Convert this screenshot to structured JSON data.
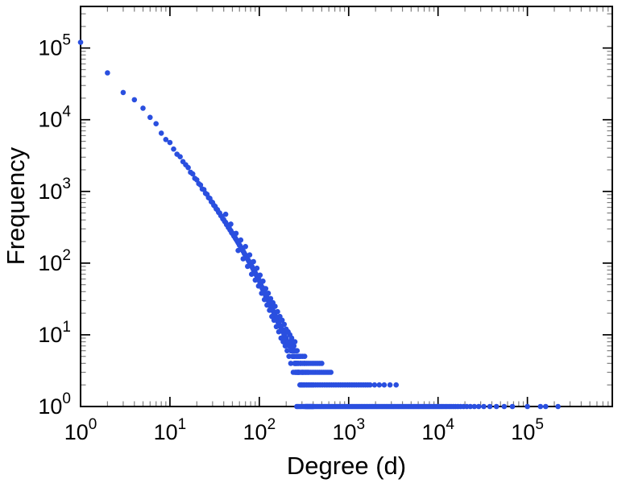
{
  "page": {
    "background": "#ffffff"
  },
  "chart_data": {
    "type": "scatter",
    "title": "",
    "xlabel": "Degree (d)",
    "ylabel": "Frequency",
    "x_scale": "log",
    "y_scale": "log",
    "xlim_log10": [
      0,
      5.95
    ],
    "ylim_log10": [
      0,
      5.58
    ],
    "x_tick_exponents": [
      0,
      1,
      2,
      3,
      4,
      5
    ],
    "y_tick_exponents": [
      0,
      1,
      2,
      3,
      4,
      5
    ],
    "tick_label_base": "10",
    "legend": "none",
    "grid": "off",
    "frame_color": "#000000",
    "minor_tick_color": "#7f7f7f",
    "marker": {
      "shape": "circle",
      "color": "#2a4fdf",
      "radius": 3.3
    },
    "points": [
      [
        1,
        120000
      ],
      [
        2,
        45000
      ],
      [
        3,
        24000
      ],
      [
        4,
        19000
      ],
      [
        5,
        14500
      ],
      [
        6,
        10800
      ],
      [
        7,
        8800
      ],
      [
        8,
        6500
      ],
      [
        9,
        5300
      ],
      [
        10,
        4800
      ],
      [
        11,
        3900
      ],
      [
        12,
        3300
      ],
      [
        13,
        3050
      ],
      [
        14,
        2600
      ],
      [
        15,
        2350
      ],
      [
        16,
        2150
      ],
      [
        17,
        1850
      ],
      [
        18,
        1750
      ],
      [
        19,
        1520
      ],
      [
        20,
        1450
      ],
      [
        21,
        1280
      ],
      [
        22,
        1230
      ],
      [
        23,
        1080
      ],
      [
        24,
        1060
      ],
      [
        25,
        940
      ],
      [
        26,
        910
      ],
      [
        27,
        820
      ],
      [
        28,
        800
      ],
      [
        29,
        720
      ],
      [
        30,
        700
      ],
      [
        31,
        640
      ],
      [
        32,
        620
      ],
      [
        33,
        570
      ],
      [
        34,
        555
      ],
      [
        35,
        510
      ],
      [
        36,
        500
      ],
      [
        37,
        460
      ],
      [
        38,
        450
      ],
      [
        39,
        415
      ],
      [
        40,
        405
      ],
      [
        41,
        380
      ],
      [
        42,
        370
      ],
      [
        43,
        345
      ],
      [
        44,
        340
      ],
      [
        45,
        315
      ],
      [
        46,
        310
      ],
      [
        47,
        290
      ],
      [
        48,
        285
      ],
      [
        49,
        265
      ],
      [
        50,
        262
      ],
      [
        51,
        250
      ],
      [
        52,
        238
      ],
      [
        53,
        232
      ],
      [
        54,
        222
      ],
      [
        55,
        215
      ],
      [
        56,
        208
      ],
      [
        57,
        200
      ],
      [
        58,
        192
      ],
      [
        59,
        187
      ],
      [
        60,
        178
      ],
      [
        61,
        174
      ],
      [
        62,
        168
      ],
      [
        63,
        162
      ],
      [
        64,
        156
      ],
      [
        65,
        152
      ],
      [
        66,
        146
      ],
      [
        67,
        142
      ],
      [
        68,
        136
      ],
      [
        69,
        133
      ],
      [
        70,
        128
      ],
      [
        71,
        125
      ],
      [
        72,
        120
      ],
      [
        73,
        118
      ],
      [
        74,
        114
      ],
      [
        75,
        111
      ],
      [
        76,
        107
      ],
      [
        77,
        105
      ],
      [
        78,
        101
      ],
      [
        79,
        99
      ],
      [
        80,
        96
      ],
      [
        81,
        94
      ],
      [
        82,
        91
      ],
      [
        83,
        89
      ],
      [
        84,
        86
      ],
      [
        85,
        84
      ],
      [
        86,
        81
      ],
      [
        87,
        79
      ],
      [
        88,
        77
      ],
      [
        89,
        75
      ],
      [
        90,
        73
      ],
      [
        91,
        71
      ],
      [
        92,
        69
      ],
      [
        93,
        68
      ],
      [
        94,
        66
      ],
      [
        95,
        64
      ],
      [
        96,
        63
      ],
      [
        97,
        61
      ],
      [
        98,
        60
      ],
      [
        99,
        58
      ],
      [
        100,
        57
      ],
      [
        102,
        53
      ],
      [
        104,
        50
      ],
      [
        106,
        47
      ],
      [
        108,
        44
      ],
      [
        110,
        45
      ],
      [
        112,
        41
      ],
      [
        114,
        39
      ],
      [
        116,
        37
      ],
      [
        118,
        35
      ],
      [
        120,
        36
      ],
      [
        122,
        33
      ],
      [
        124,
        31
      ],
      [
        126,
        30
      ],
      [
        128,
        28
      ],
      [
        130,
        29
      ],
      [
        132,
        27
      ],
      [
        134,
        25
      ],
      [
        136,
        24
      ],
      [
        138,
        23
      ],
      [
        140,
        24
      ],
      [
        142,
        22
      ],
      [
        144,
        21
      ],
      [
        146,
        20
      ],
      [
        148,
        19
      ],
      [
        150,
        20
      ],
      [
        153,
        18
      ],
      [
        156,
        17
      ],
      [
        159,
        16
      ],
      [
        162,
        15
      ],
      [
        165,
        15
      ],
      [
        168,
        14
      ],
      [
        171,
        13
      ],
      [
        174,
        13
      ],
      [
        177,
        12
      ],
      [
        180,
        12
      ],
      [
        183,
        11
      ],
      [
        186,
        11
      ],
      [
        189,
        10
      ],
      [
        192,
        10
      ],
      [
        195,
        9
      ],
      [
        198,
        9
      ],
      [
        200,
        9
      ],
      [
        205,
        8
      ],
      [
        210,
        8
      ],
      [
        215,
        7
      ],
      [
        220,
        7
      ],
      [
        225,
        6
      ],
      [
        230,
        6
      ],
      [
        235,
        5
      ],
      [
        240,
        5
      ],
      [
        245,
        5
      ],
      [
        250,
        4
      ],
      [
        255,
        4
      ],
      [
        260,
        4
      ],
      [
        265,
        3
      ],
      [
        270,
        3
      ],
      [
        275,
        3
      ],
      [
        280,
        3
      ],
      [
        285,
        2
      ],
      [
        290,
        2
      ],
      [
        295,
        2
      ],
      [
        300,
        2
      ],
      [
        310,
        2
      ],
      [
        320,
        2
      ],
      [
        330,
        1
      ],
      [
        340,
        1
      ],
      [
        350,
        1
      ],
      [
        360,
        1
      ],
      [
        370,
        1
      ],
      [
        380,
        1
      ],
      [
        390,
        1
      ],
      [
        400,
        1
      ],
      [
        42,
        480
      ],
      [
        48,
        350
      ],
      [
        55,
        260
      ],
      [
        58,
        150
      ],
      [
        62,
        210
      ],
      [
        66,
        115
      ],
      [
        70,
        170
      ],
      [
        74,
        90
      ],
      [
        78,
        130
      ],
      [
        82,
        70
      ],
      [
        86,
        105
      ],
      [
        90,
        58
      ],
      [
        94,
        85
      ],
      [
        98,
        48
      ],
      [
        102,
        68
      ],
      [
        106,
        38
      ],
      [
        110,
        56
      ],
      [
        114,
        31
      ],
      [
        118,
        44
      ],
      [
        122,
        26
      ],
      [
        126,
        38
      ],
      [
        130,
        22
      ],
      [
        134,
        32
      ],
      [
        138,
        18
      ],
      [
        142,
        28
      ],
      [
        146,
        16
      ],
      [
        150,
        25
      ],
      [
        155,
        13
      ],
      [
        160,
        21
      ],
      [
        165,
        11
      ],
      [
        170,
        18
      ],
      [
        175,
        9
      ],
      [
        180,
        16
      ],
      [
        185,
        8
      ],
      [
        190,
        14
      ],
      [
        195,
        7
      ],
      [
        200,
        12
      ],
      [
        205,
        6
      ],
      [
        210,
        11
      ],
      [
        215,
        5
      ],
      [
        220,
        10
      ],
      [
        225,
        4
      ],
      [
        230,
        9
      ],
      [
        235,
        7
      ],
      [
        240,
        3
      ],
      [
        245,
        6
      ],
      [
        250,
        8
      ],
      [
        255,
        3
      ],
      [
        260,
        6
      ],
      [
        265,
        5
      ],
      [
        270,
        4
      ],
      [
        280,
        5
      ],
      [
        290,
        4
      ],
      [
        300,
        3
      ],
      [
        310,
        3
      ],
      [
        320,
        4
      ],
      [
        330,
        3
      ],
      [
        340,
        2
      ],
      [
        350,
        3
      ],
      [
        360,
        2
      ],
      [
        380,
        2
      ],
      [
        400,
        2
      ],
      [
        263,
        1
      ],
      [
        272,
        1
      ],
      [
        285,
        1
      ],
      [
        296,
        1
      ],
      [
        310,
        1
      ],
      [
        322,
        1
      ],
      [
        336,
        1
      ],
      [
        350,
        1
      ],
      [
        365,
        1
      ],
      [
        381,
        1
      ],
      [
        398,
        1
      ],
      [
        415,
        1
      ],
      [
        433,
        1
      ],
      [
        452,
        1
      ],
      [
        472,
        1
      ],
      [
        492,
        1
      ],
      [
        514,
        1
      ],
      [
        536,
        1
      ],
      [
        560,
        1
      ],
      [
        584,
        1
      ],
      [
        610,
        1
      ],
      [
        637,
        1
      ],
      [
        665,
        1
      ],
      [
        694,
        1
      ],
      [
        724,
        1
      ],
      [
        756,
        1
      ],
      [
        789,
        1
      ],
      [
        824,
        1
      ],
      [
        860,
        1
      ],
      [
        898,
        1
      ],
      [
        937,
        1
      ],
      [
        978,
        1
      ],
      [
        1021,
        1
      ],
      [
        1066,
        1
      ],
      [
        1113,
        1
      ],
      [
        1162,
        1
      ],
      [
        1213,
        1
      ],
      [
        1266,
        1
      ],
      [
        1321,
        1
      ],
      [
        1379,
        1
      ],
      [
        1440,
        1
      ],
      [
        1503,
        1
      ],
      [
        1569,
        1
      ],
      [
        1638,
        1
      ],
      [
        1710,
        1
      ],
      [
        1785,
        1
      ],
      [
        1863,
        1
      ],
      [
        1945,
        1
      ],
      [
        2030,
        1
      ],
      [
        2119,
        1
      ],
      [
        2212,
        1
      ],
      [
        2309,
        1
      ],
      [
        2410,
        1
      ],
      [
        2516,
        1
      ],
      [
        2626,
        1
      ],
      [
        2741,
        1
      ],
      [
        2861,
        1
      ],
      [
        2987,
        1
      ],
      [
        3118,
        1
      ],
      [
        3255,
        1
      ],
      [
        3397,
        1
      ],
      [
        3546,
        1
      ],
      [
        3701,
        1
      ],
      [
        3864,
        1
      ],
      [
        4033,
        1
      ],
      [
        4210,
        1
      ],
      [
        4395,
        1
      ],
      [
        4587,
        1
      ],
      [
        4789,
        1
      ],
      [
        4999,
        1
      ],
      [
        5218,
        1
      ],
      [
        5447,
        1
      ],
      [
        5686,
        1
      ],
      [
        5935,
        1
      ],
      [
        6196,
        1
      ],
      [
        6468,
        1
      ],
      [
        6751,
        1
      ],
      [
        7048,
        1
      ],
      [
        7356,
        1
      ],
      [
        7679,
        1
      ],
      [
        8016,
        1
      ],
      [
        8368,
        1
      ],
      [
        8735,
        1
      ],
      [
        9118,
        1
      ],
      [
        9518,
        1
      ],
      [
        9935,
        1
      ],
      [
        10400,
        1
      ],
      [
        10900,
        1
      ],
      [
        11400,
        1
      ],
      [
        12000,
        1
      ],
      [
        12600,
        1
      ],
      [
        13300,
        1
      ],
      [
        14000,
        1
      ],
      [
        14800,
        1
      ],
      [
        15700,
        1
      ],
      [
        16700,
        1
      ],
      [
        17900,
        1
      ],
      [
        19300,
        1
      ],
      [
        21000,
        1
      ],
      [
        23000,
        1
      ],
      [
        25500,
        1
      ],
      [
        28500,
        1
      ],
      [
        32500,
        1
      ],
      [
        38000,
        1
      ],
      [
        45000,
        1
      ],
      [
        55000,
        1
      ],
      [
        68000,
        1
      ],
      [
        100000,
        1
      ],
      [
        140000,
        1
      ],
      [
        160000,
        1
      ],
      [
        220000,
        1
      ],
      [
        300,
        2
      ],
      [
        318,
        2
      ],
      [
        337,
        2
      ],
      [
        357,
        2
      ],
      [
        379,
        2
      ],
      [
        402,
        2
      ],
      [
        426,
        2
      ],
      [
        452,
        2
      ],
      [
        479,
        2
      ],
      [
        508,
        2
      ],
      [
        539,
        2
      ],
      [
        571,
        2
      ],
      [
        605,
        2
      ],
      [
        642,
        2
      ],
      [
        680,
        2
      ],
      [
        721,
        2
      ],
      [
        765,
        2
      ],
      [
        811,
        2
      ],
      [
        860,
        2
      ],
      [
        912,
        2
      ],
      [
        967,
        2
      ],
      [
        1025,
        2
      ],
      [
        1087,
        2
      ],
      [
        1153,
        2
      ],
      [
        1222,
        2
      ],
      [
        1296,
        2
      ],
      [
        1374,
        2
      ],
      [
        1457,
        2
      ],
      [
        1545,
        2
      ],
      [
        1638,
        2
      ],
      [
        1737,
        2
      ],
      [
        1950,
        2
      ],
      [
        2200,
        2
      ],
      [
        2500,
        2
      ],
      [
        2900,
        2
      ],
      [
        3400,
        2
      ],
      [
        252,
        3
      ],
      [
        264,
        3
      ],
      [
        277,
        3
      ],
      [
        291,
        3
      ],
      [
        305,
        3
      ],
      [
        320,
        3
      ],
      [
        336,
        3
      ],
      [
        353,
        3
      ],
      [
        370,
        3
      ],
      [
        389,
        3
      ],
      [
        408,
        3
      ],
      [
        428,
        3
      ],
      [
        450,
        3
      ],
      [
        472,
        3
      ],
      [
        496,
        3
      ],
      [
        520,
        3
      ],
      [
        546,
        3
      ],
      [
        574,
        3
      ],
      [
        602,
        3
      ],
      [
        632,
        3
      ],
      [
        248,
        4
      ],
      [
        260,
        4
      ],
      [
        274,
        4
      ],
      [
        288,
        4
      ],
      [
        303,
        4
      ],
      [
        318,
        4
      ],
      [
        335,
        4
      ],
      [
        352,
        4
      ],
      [
        370,
        4
      ],
      [
        389,
        4
      ],
      [
        409,
        4
      ],
      [
        430,
        4
      ],
      [
        452,
        4
      ],
      [
        475,
        4
      ],
      [
        500,
        4
      ],
      [
        238,
        5
      ],
      [
        250,
        5
      ],
      [
        263,
        5
      ],
      [
        277,
        5
      ],
      [
        291,
        5
      ],
      [
        306,
        5
      ],
      [
        322,
        5
      ],
      [
        228,
        6
      ],
      [
        240,
        6
      ],
      [
        252,
        6
      ],
      [
        265,
        6
      ],
      [
        220,
        7
      ],
      [
        232,
        7
      ],
      [
        244,
        7
      ],
      [
        212,
        8
      ],
      [
        224,
        8
      ]
    ]
  }
}
